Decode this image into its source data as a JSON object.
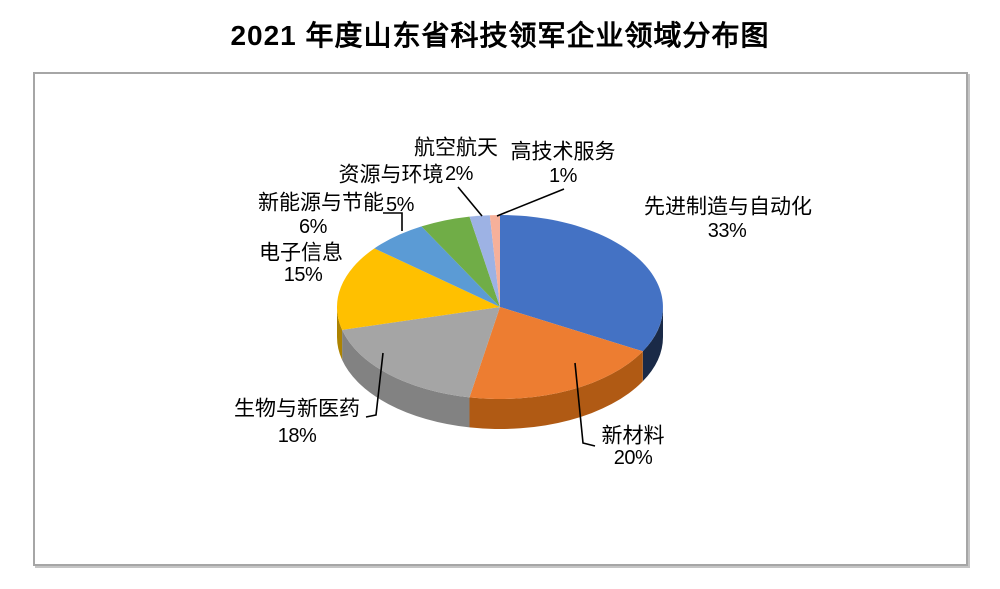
{
  "title": "2021 年度山东省科技领军企业领域分布图",
  "chart_data": {
    "type": "pie",
    "is_3d": true,
    "title": "2021 年度山东省科技领军企业领域分布图",
    "start_angle_deg": 0,
    "direction": "clockwise",
    "unit": "%",
    "legend": "none",
    "categories": [
      "先进制造与自动化",
      "新材料",
      "生物与新医药",
      "电子信息",
      "新能源与节能",
      "资源与环境",
      "航空航天",
      "高技术服务"
    ],
    "values": [
      33,
      20,
      18,
      15,
      6,
      5,
      2,
      1
    ],
    "slices": [
      {
        "key": "advanced-manufacturing",
        "label": "先进制造与自动化",
        "pct": 33,
        "pct_label": "33%",
        "color": "#4472C4",
        "side_color": "#1A2A47"
      },
      {
        "key": "new-materials",
        "label": "新材料",
        "pct": 20,
        "pct_label": "20%",
        "color": "#ED7D31",
        "side_color": "#B05A14"
      },
      {
        "key": "bio-medicine",
        "label": "生物与新医药",
        "pct": 18,
        "pct_label": "18%",
        "color": "#A5A5A5",
        "side_color": "#828282"
      },
      {
        "key": "electronic-info",
        "label": "电子信息",
        "pct": 15,
        "pct_label": "15%",
        "color": "#FFC000",
        "side_color": "#AD8300"
      },
      {
        "key": "new-energy",
        "label": "新能源与节能",
        "pct": 6,
        "pct_label": "6%",
        "color": "#5B9BD5",
        "side_color": "#3D7AB5"
      },
      {
        "key": "resources-env",
        "label": "资源与环境",
        "pct": 5,
        "pct_label": "5%",
        "color": "#70AD47",
        "side_color": "#548235"
      },
      {
        "key": "aerospace",
        "label": "航空航天",
        "pct": 2,
        "pct_label": "2%",
        "color": "#9DB2E4",
        "side_color": "#7E96C9"
      },
      {
        "key": "hitech-services",
        "label": "高技术服务",
        "pct": 1,
        "pct_label": "1%",
        "color": "#F6B09A",
        "side_color": "#D28A70"
      }
    ]
  }
}
